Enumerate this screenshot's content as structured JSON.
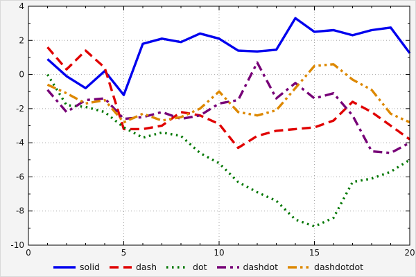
{
  "chart_data": {
    "type": "line",
    "x": [
      1,
      2,
      3,
      4,
      5,
      6,
      7,
      8,
      9,
      10,
      11,
      12,
      13,
      14,
      15,
      16,
      17,
      18,
      19,
      20
    ],
    "series": [
      {
        "name": "solid",
        "color": "#0000ee",
        "dash": "",
        "values": [
          0.9,
          -0.1,
          -0.8,
          0.2,
          -1.2,
          1.8,
          2.1,
          1.9,
          2.4,
          2.1,
          1.4,
          1.35,
          1.45,
          3.3,
          2.5,
          2.6,
          2.3,
          2.6,
          2.75,
          1.25
        ]
      },
      {
        "name": "dash",
        "color": "#e00000",
        "dash": "13,7",
        "values": [
          1.6,
          0.3,
          1.4,
          0.4,
          -3.2,
          -3.2,
          -3.0,
          -2.2,
          -2.4,
          -2.9,
          -4.3,
          -3.6,
          -3.3,
          -3.2,
          -3.1,
          -2.7,
          -1.6,
          -2.2,
          -3.0,
          -3.8
        ]
      },
      {
        "name": "dot",
        "color": "#007700",
        "dash": "2.5,5.5",
        "values": [
          0.0,
          -1.8,
          -1.9,
          -2.2,
          -3.1,
          -3.7,
          -3.4,
          -3.6,
          -4.6,
          -5.2,
          -6.3,
          -6.9,
          -7.4,
          -8.5,
          -8.9,
          -8.4,
          -6.3,
          -6.1,
          -5.7,
          -5.0
        ]
      },
      {
        "name": "dashdot",
        "color": "#770077",
        "dash": "13,6,4,6",
        "values": [
          -0.9,
          -2.2,
          -1.5,
          -1.4,
          -2.6,
          -2.5,
          -2.2,
          -2.6,
          -2.4,
          -1.7,
          -1.5,
          0.7,
          -1.4,
          -0.5,
          -1.4,
          -1.1,
          -2.4,
          -4.5,
          -4.6,
          -4.0
        ]
      },
      {
        "name": "dashdotdot",
        "color": "#dd8800",
        "dash": "13,5,3.5,5,3.5,5",
        "values": [
          -0.6,
          -1.1,
          -1.7,
          -1.5,
          -2.8,
          -2.3,
          -2.7,
          -2.5,
          -2.0,
          -1.0,
          -2.2,
          -2.4,
          -2.1,
          -0.8,
          0.5,
          0.6,
          -0.3,
          -0.9,
          -2.3,
          -2.8
        ]
      }
    ],
    "xlim": [
      0,
      20
    ],
    "ylim": [
      -10,
      4
    ],
    "xticks": [
      0,
      5,
      10,
      15,
      20
    ],
    "yticks": [
      4,
      2,
      0,
      -2,
      -4,
      -6,
      -8,
      -10
    ],
    "x_minor_step": 1,
    "y_minor_step": 1,
    "grid": true,
    "legend_position": "bottom",
    "line_width": 3.4,
    "grid_color": "#a8a8a8",
    "axis_color": "#000000",
    "tick_label_color": "#151515",
    "plot_bg": "#ffffff"
  }
}
